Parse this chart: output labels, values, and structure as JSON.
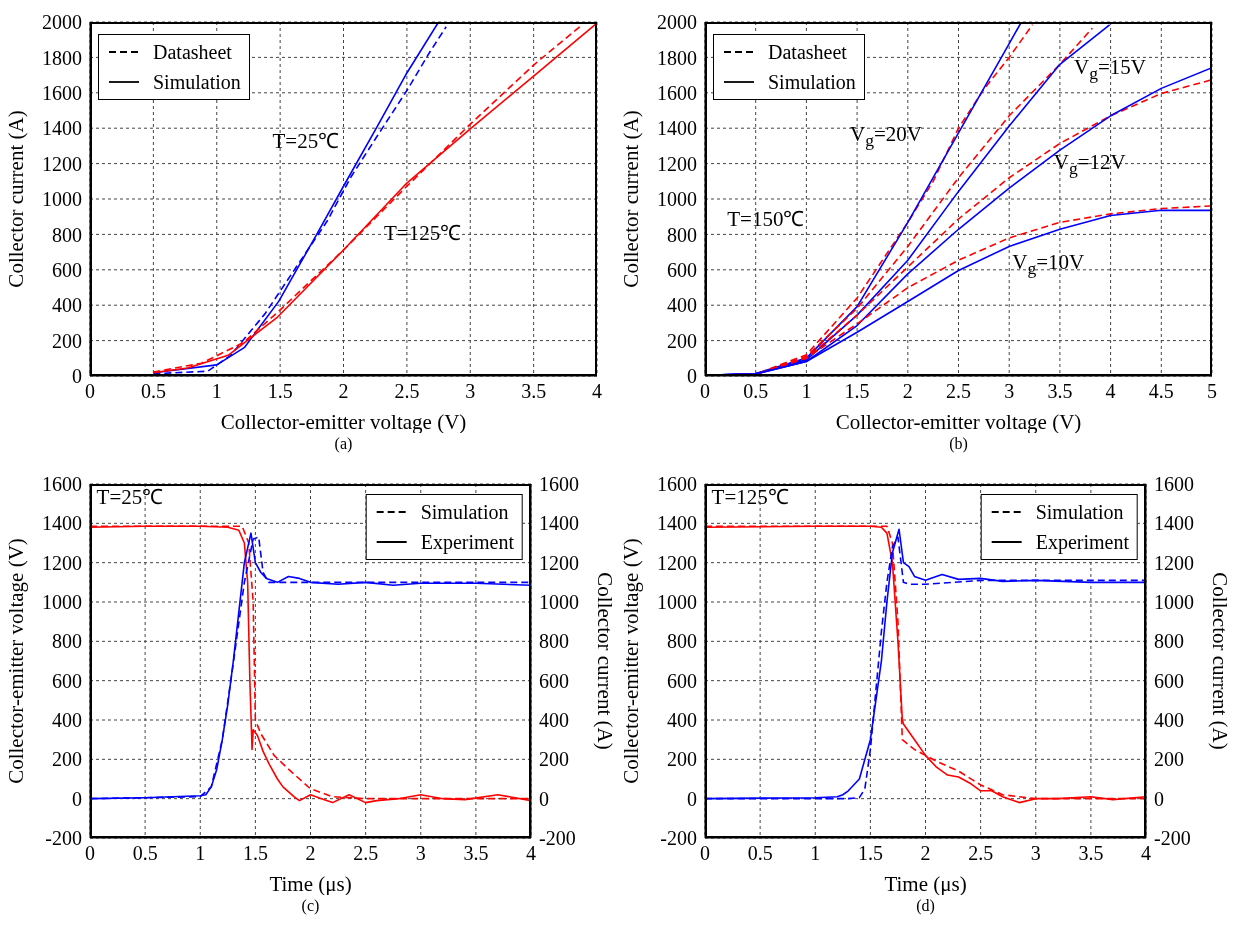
{
  "chart_data": [
    {
      "type": "line",
      "title": "(a)",
      "xlabel": "Collector-emitter voltage (V)",
      "ylabel": "Collector current (A)",
      "xlim": [
        0,
        4
      ],
      "xticks": [
        0,
        0.5,
        1,
        1.5,
        2,
        2.5,
        3,
        3.5,
        4
      ],
      "ylim": [
        0,
        2000
      ],
      "yticks": [
        0,
        200,
        400,
        600,
        800,
        1000,
        1200,
        1400,
        1600,
        1800,
        2000
      ],
      "grid": true,
      "marker": "none",
      "annotations": [
        "Datasheet",
        "Simulation",
        "T=25℃",
        "T=125℃"
      ],
      "series": [
        {
          "color": "#0000ff",
          "line_style": "dashed",
          "x": [
            0.5,
            0.93,
            1.11,
            1.38,
            1.65,
            1.87,
            2.06,
            2.27,
            2.5,
            2.68,
            2.81
          ],
          "values": [
            13,
            27,
            117,
            351,
            640,
            874,
            1126,
            1360,
            1613,
            1829,
            1973
          ]
        },
        {
          "color": "#0000ff",
          "line_style": "solid",
          "x": [
            0.5,
            1.0,
            1.22,
            1.49,
            1.79,
            2.0,
            2.27,
            2.5,
            2.75
          ],
          "values": [
            18,
            63,
            162,
            423,
            802,
            1072,
            1414,
            1712,
            2000
          ]
        },
        {
          "color": "#ff0000",
          "line_style": "dashed",
          "x": [
            0.5,
            0.88,
            1.21,
            1.48,
            2.0,
            2.5,
            3.0,
            3.5,
            3.88
          ],
          "values": [
            23,
            72,
            189,
            360,
            712,
            1072,
            1423,
            1757,
            1982
          ]
        },
        {
          "color": "#ff0000",
          "line_style": "solid",
          "x": [
            0.5,
            0.77,
            1.09,
            1.48,
            2.0,
            2.5,
            3.0,
            3.5,
            3.99
          ],
          "values": [
            18,
            45,
            117,
            333,
            712,
            1090,
            1396,
            1694,
            1988
          ]
        }
      ]
    },
    {
      "type": "line",
      "title": "(b)",
      "xlabel": "Collector-emitter voltage (V)",
      "ylabel": "Collector current (A)",
      "xlim": [
        0,
        5
      ],
      "xticks": [
        0,
        0.5,
        1,
        1.5,
        2,
        2.5,
        3,
        3.5,
        4,
        4.5,
        5
      ],
      "ylim": [
        0,
        2000
      ],
      "yticks": [
        0,
        200,
        400,
        600,
        800,
        1000,
        1200,
        1400,
        1600,
        1800,
        2000
      ],
      "grid": true,
      "marker": "none",
      "annotations": [
        "Datasheet",
        "Simulation",
        "T=150℃",
        "V$_{g}$=20V",
        "V$_{g}$=15V",
        "V$_{g}$=12V",
        "V$_{g}$=10V"
      ],
      "series": [
        {
          "color": "#ff0000",
          "line_style": "dashed",
          "x": [
            0,
            0.5,
            1.0,
            1.5,
            2.0,
            2.25,
            2.5,
            2.75,
            3.0,
            3.23
          ],
          "values": [
            4,
            10,
            120,
            441,
            868,
            1100,
            1400,
            1620,
            1800,
            1985
          ]
        },
        {
          "color": "#0000ff",
          "line_style": "solid",
          "x": [
            0,
            0.5,
            1.0,
            1.5,
            2.0,
            2.5,
            3.0,
            3.12
          ],
          "values": [
            4,
            14,
            101,
            392,
            868,
            1373,
            1878,
            2000
          ]
        },
        {
          "color": "#ff0000",
          "line_style": "dashed",
          "x": [
            0,
            0.5,
            1,
            1.5,
            2.0,
            2.5,
            3.0,
            3.5,
            3.82
          ],
          "values": [
            4,
            10,
            111,
            382,
            732,
            1120,
            1470,
            1761,
            1965
          ]
        },
        {
          "color": "#0000ff",
          "line_style": "solid",
          "x": [
            0,
            0.5,
            1,
            1.5,
            2.0,
            2.5,
            3.0,
            3.5,
            3.99
          ],
          "values": [
            4,
            12,
            91,
            344,
            654,
            1043,
            1412,
            1761,
            1984
          ]
        },
        {
          "color": "#ff0000",
          "line_style": "dashed",
          "x": [
            0,
            0.5,
            1,
            1.5,
            2.0,
            2.5,
            3.0,
            3.5,
            4,
            4.5,
            5
          ],
          "values": [
            4,
            10,
            101,
            344,
            616,
            887,
            1120,
            1314,
            1470,
            1596,
            1674
          ]
        },
        {
          "color": "#0000ff",
          "line_style": "solid",
          "x": [
            0,
            0.5,
            1,
            1.5,
            2.0,
            2.5,
            3.0,
            3.5,
            4.0,
            4.5,
            5.0
          ],
          "values": [
            4,
            12,
            82,
            285,
            577,
            829,
            1062,
            1276,
            1470,
            1625,
            1742
          ]
        },
        {
          "color": "#ff0000",
          "line_style": "dashed",
          "x": [
            0,
            0.5,
            1,
            1.5,
            2.0,
            2.5,
            3.0,
            3.5,
            4.0,
            4.5,
            5
          ],
          "values": [
            4,
            10,
            101,
            295,
            499,
            654,
            780,
            868,
            916,
            946,
            961
          ]
        },
        {
          "color": "#0000ff",
          "line_style": "solid",
          "x": [
            0,
            0.5,
            1,
            1.5,
            2.0,
            2.5,
            3.0,
            3.5,
            4.0,
            4.5,
            5
          ],
          "values": [
            4,
            12,
            82,
            247,
            421,
            596,
            732,
            829,
            907,
            936,
            936
          ]
        }
      ]
    },
    {
      "type": "line",
      "title": "(c)",
      "xlabel": "Time (μs)",
      "ylabel": "Collector-emitter voltage (V)",
      "y2label": "Collector current (A)",
      "xlim": [
        0,
        4
      ],
      "xticks": [
        0,
        0.5,
        1,
        1.5,
        2,
        2.5,
        3,
        3.5,
        4
      ],
      "ylim": [
        -200,
        1600
      ],
      "yticks": [
        -200,
        0,
        200,
        400,
        600,
        800,
        1000,
        1200,
        1400,
        1600
      ],
      "y2lim": [
        -200,
        1600
      ],
      "y2ticks": [
        -200,
        0,
        200,
        400,
        600,
        800,
        1000,
        1200,
        1400,
        1600
      ],
      "grid": true,
      "marker": "none",
      "annotations": [
        "Simulation",
        "Experiment",
        "T=25℃"
      ],
      "series": [
        {
          "color": "#ff0000",
          "line_style": "dashed",
          "x": [
            0,
            1.38,
            1.44,
            1.48,
            1.5,
            1.55,
            1.67,
            1.8,
            2.0,
            2.2,
            2.5,
            4.0
          ],
          "values": [
            1385,
            1385,
            1300,
            1000,
            400,
            330,
            220,
            150,
            50,
            10,
            0,
            0
          ]
        },
        {
          "color": "#ff0000",
          "line_style": "solid",
          "x": [
            0,
            0.5,
            1.0,
            1.25,
            1.35,
            1.4,
            1.43,
            1.45,
            1.47,
            1.48,
            1.52,
            1.57,
            1.63,
            1.7,
            1.75,
            1.85,
            1.9,
            2.0,
            2.1,
            2.2,
            2.35,
            2.5,
            2.6,
            2.8,
            3.0,
            3.2,
            3.4,
            3.7,
            4.0
          ],
          "values": [
            1380,
            1385,
            1385,
            1380,
            1365,
            1300,
            1100,
            600,
            250,
            350,
            320,
            240,
            170,
            100,
            60,
            10,
            -10,
            20,
            0,
            -20,
            20,
            -20,
            -10,
            0,
            20,
            0,
            -5,
            20,
            -10
          ]
        },
        {
          "color": "#0000ff",
          "line_style": "dashed",
          "axis": "y2",
          "x": [
            0,
            1.0,
            1.1,
            1.2,
            1.3,
            1.4,
            1.48,
            1.53,
            1.57,
            1.62,
            2.0,
            4.0
          ],
          "values": [
            0,
            10,
            60,
            300,
            690,
            1100,
            1320,
            1330,
            1150,
            1100,
            1100,
            1100
          ]
        },
        {
          "color": "#0000ff",
          "line_style": "solid",
          "axis": "y2",
          "x": [
            0,
            0.5,
            1.0,
            1.05,
            1.1,
            1.15,
            1.2,
            1.25,
            1.3,
            1.35,
            1.4,
            1.46,
            1.5,
            1.55,
            1.6,
            1.7,
            1.8,
            1.9,
            2.0,
            2.25,
            2.5,
            2.75,
            3.0,
            3.5,
            4.0
          ],
          "values": [
            0,
            5,
            15,
            20,
            60,
            150,
            300,
            480,
            700,
            950,
            1200,
            1350,
            1200,
            1150,
            1120,
            1100,
            1130,
            1120,
            1100,
            1090,
            1100,
            1085,
            1095,
            1095,
            1085
          ]
        }
      ]
    },
    {
      "type": "line",
      "title": "(d)",
      "xlabel": "Time (μs)",
      "ylabel": "Collector-emitter voltage (V)",
      "y2label": "Collector current (A)",
      "xlim": [
        0,
        4
      ],
      "xticks": [
        0,
        0.5,
        1,
        1.5,
        2,
        2.5,
        3,
        3.5,
        4
      ],
      "ylim": [
        -200,
        1600
      ],
      "yticks": [
        -200,
        0,
        200,
        400,
        600,
        800,
        1000,
        1200,
        1400,
        1600
      ],
      "y2lim": [
        -200,
        1600
      ],
      "y2ticks": [
        -200,
        0,
        200,
        400,
        600,
        800,
        1000,
        1200,
        1400,
        1600
      ],
      "grid": true,
      "marker": "none",
      "annotations": [
        "Simulation",
        "Experiment",
        "T=125℃"
      ],
      "series": [
        {
          "color": "#ff0000",
          "line_style": "dashed",
          "x": [
            0,
            1.65,
            1.7,
            1.75,
            1.79,
            1.9,
            2.1,
            2.3,
            2.5,
            2.7,
            3.0,
            4.0
          ],
          "values": [
            1385,
            1385,
            1300,
            900,
            300,
            250,
            190,
            140,
            70,
            20,
            0,
            0
          ]
        },
        {
          "color": "#ff0000",
          "line_style": "solid",
          "x": [
            0,
            1.0,
            1.5,
            1.6,
            1.65,
            1.7,
            1.75,
            1.79,
            1.8,
            1.9,
            2.0,
            2.1,
            2.2,
            2.3,
            2.4,
            2.5,
            2.6,
            2.7,
            2.85,
            3.0,
            3.2,
            3.5,
            3.7,
            4.0
          ],
          "values": [
            1380,
            1385,
            1385,
            1380,
            1350,
            1200,
            800,
            400,
            380,
            300,
            220,
            160,
            120,
            110,
            80,
            40,
            40,
            10,
            -20,
            0,
            0,
            10,
            -5,
            10
          ]
        },
        {
          "color": "#0000ff",
          "line_style": "dashed",
          "axis": "y2",
          "x": [
            0,
            1.3,
            1.4,
            1.45,
            1.5,
            1.55,
            1.6,
            1.65,
            1.7,
            1.75,
            1.8,
            1.85,
            2.0,
            2.5,
            4.0
          ],
          "values": [
            0,
            0,
            5,
            50,
            250,
            550,
            850,
            1100,
            1280,
            1330,
            1100,
            1090,
            1090,
            1110,
            1110
          ]
        },
        {
          "color": "#0000ff",
          "line_style": "solid",
          "axis": "y2",
          "x": [
            0,
            1.0,
            1.2,
            1.25,
            1.3,
            1.4,
            1.5,
            1.55,
            1.6,
            1.65,
            1.7,
            1.76,
            1.8,
            1.85,
            1.9,
            2.0,
            2.15,
            2.3,
            2.5,
            2.7,
            3.0,
            3.5,
            4.0
          ],
          "values": [
            0,
            5,
            10,
            20,
            40,
            100,
            300,
            500,
            700,
            1000,
            1250,
            1370,
            1200,
            1180,
            1130,
            1110,
            1140,
            1115,
            1120,
            1105,
            1110,
            1100,
            1100
          ]
        }
      ]
    }
  ]
}
